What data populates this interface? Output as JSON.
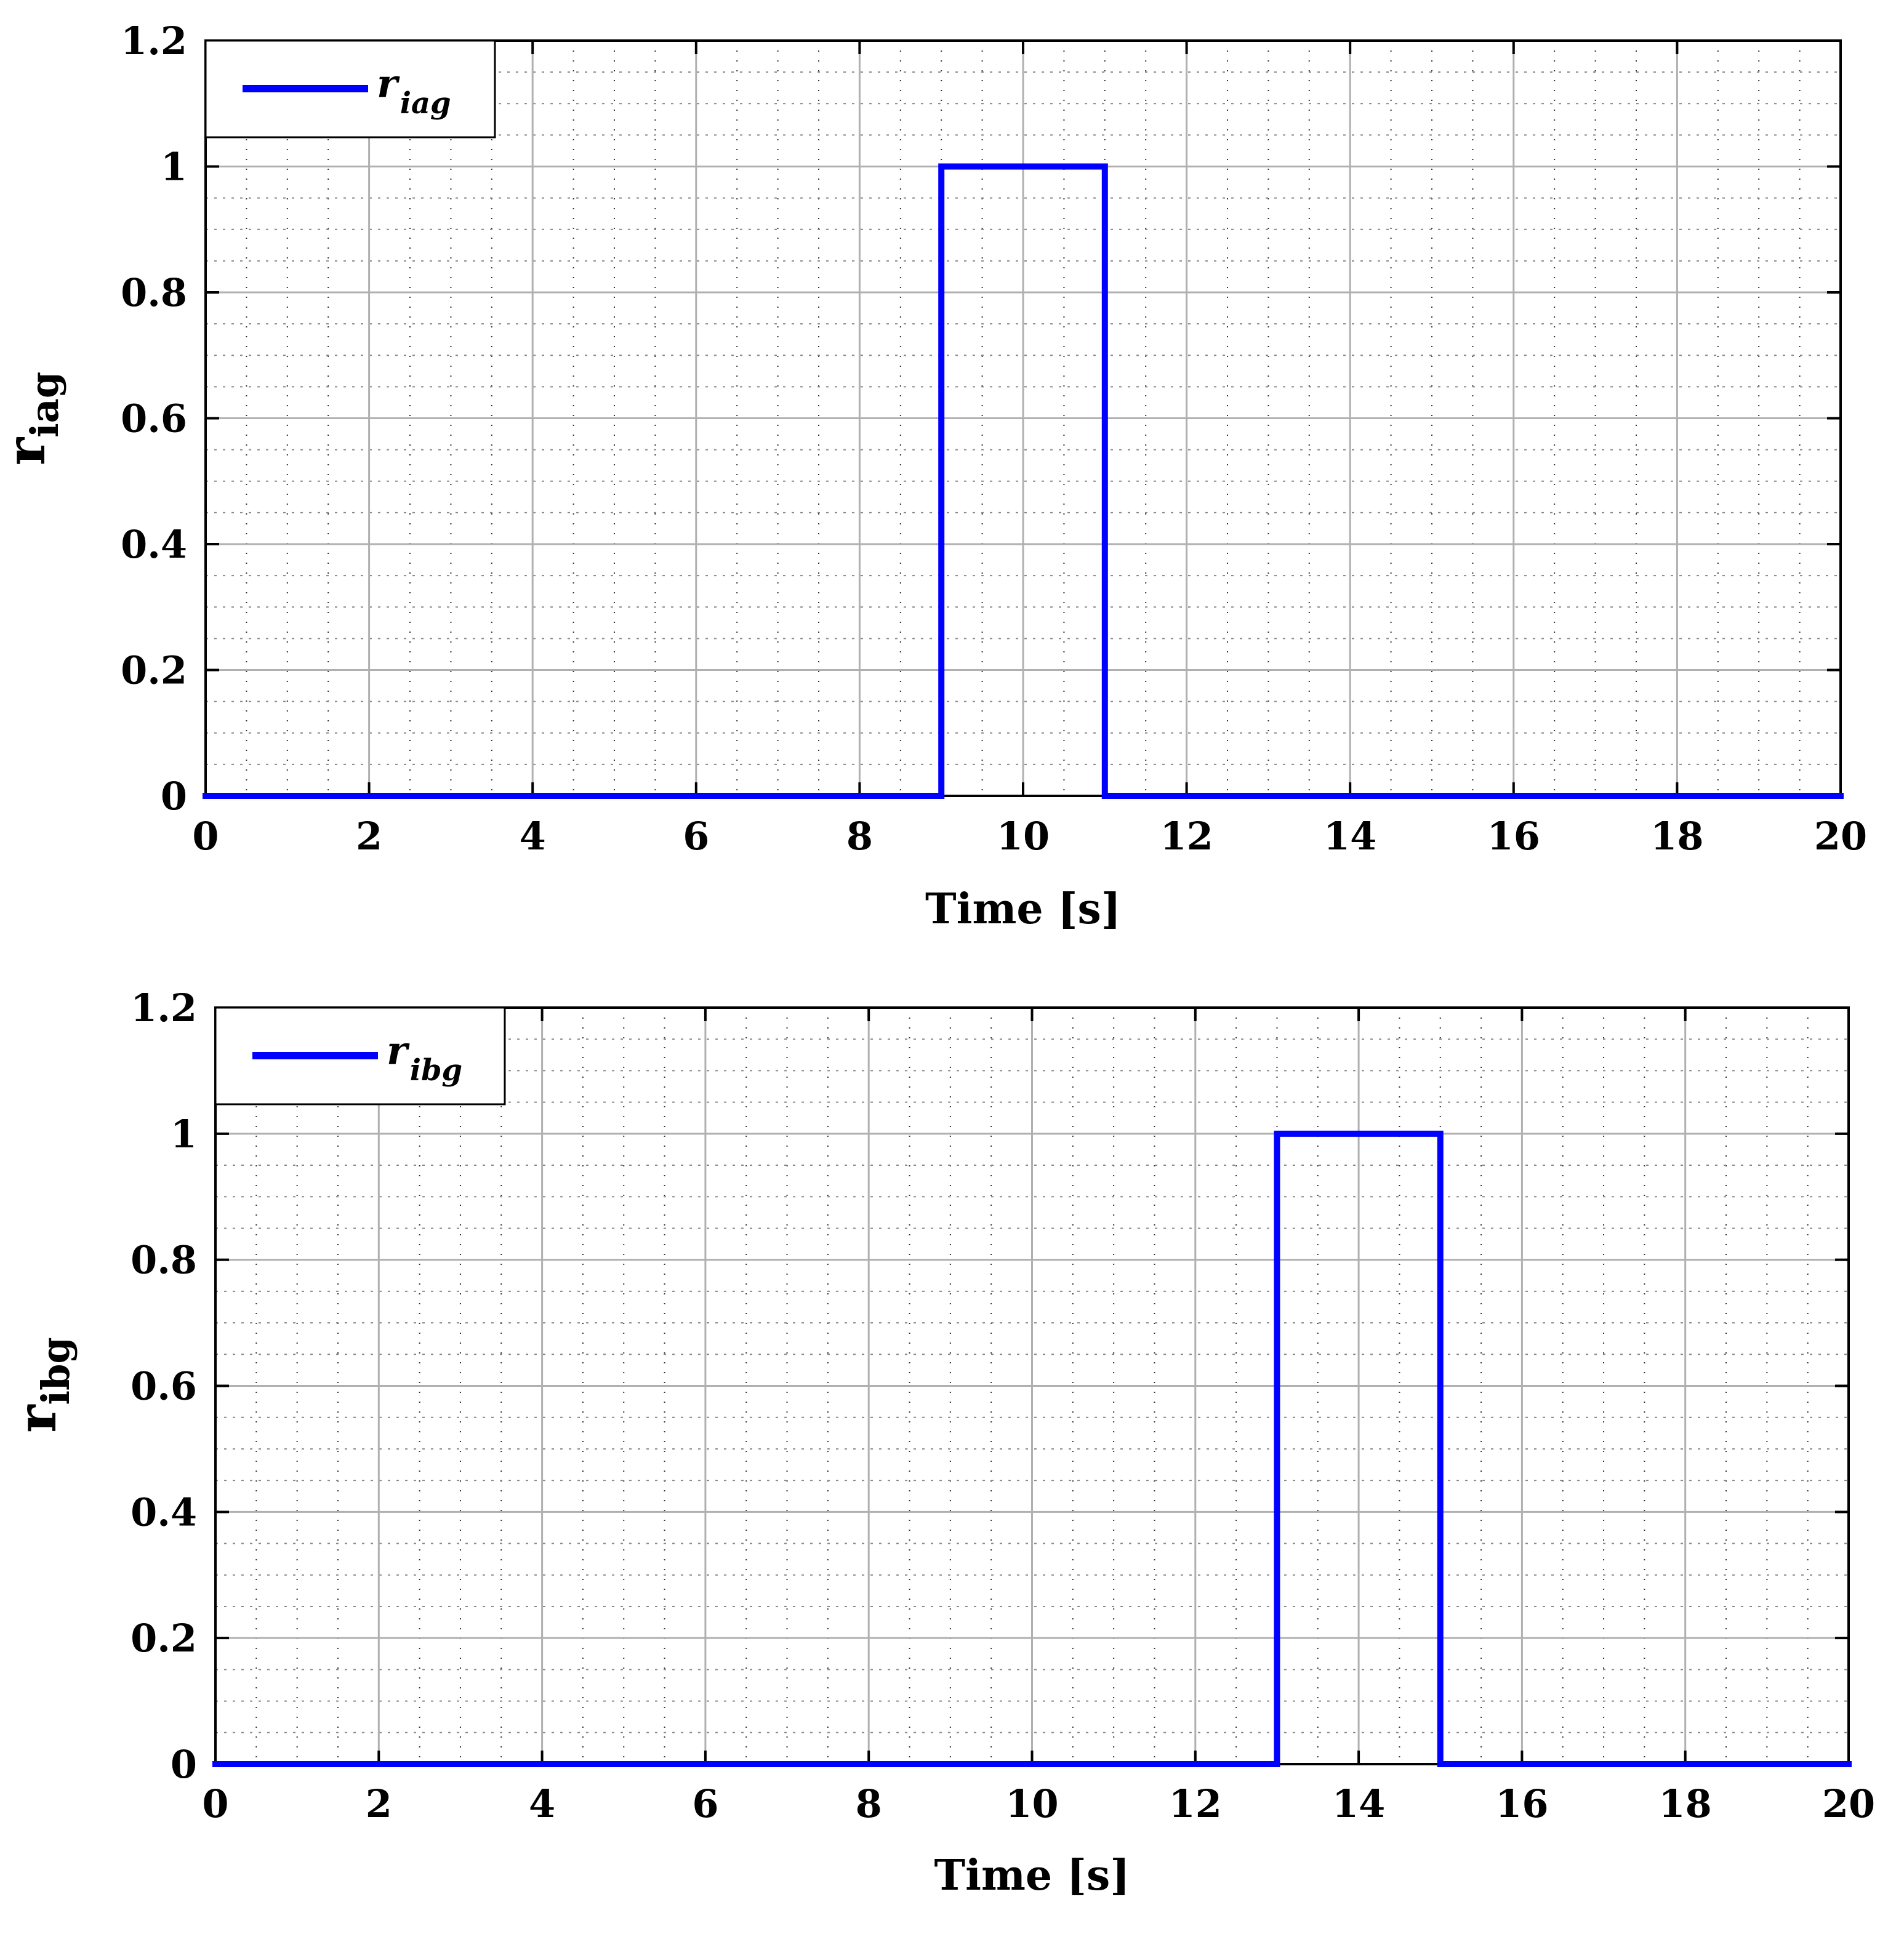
{
  "chart_data": [
    {
      "type": "line",
      "x_label": "Time [s]",
      "y_label": {
        "base": "r",
        "sub": "iag"
      },
      "legend": {
        "base": "r",
        "sub": "iag",
        "position": "top-left"
      },
      "xlim": [
        0,
        20
      ],
      "ylim": [
        0,
        1.2
      ],
      "x_ticks": [
        "0",
        "2",
        "4",
        "6",
        "8",
        "10",
        "12",
        "14",
        "16",
        "18",
        "20"
      ],
      "y_ticks": [
        "0",
        "0.2",
        "0.4",
        "0.6",
        "0.8",
        "1",
        "1.2"
      ],
      "grid": true,
      "minor_grid": true,
      "series": [
        {
          "name": "r_iag",
          "color": "#0000ff",
          "x": [
            0,
            9,
            9,
            11,
            11,
            20
          ],
          "y": [
            0,
            0,
            1,
            1,
            0,
            0
          ]
        }
      ]
    },
    {
      "type": "line",
      "x_label": "Time [s]",
      "y_label": {
        "base": "r",
        "sub": "ibg"
      },
      "legend": {
        "base": "r",
        "sub": "ibg",
        "position": "top-left"
      },
      "xlim": [
        0,
        20
      ],
      "ylim": [
        0,
        1.2
      ],
      "x_ticks": [
        "0",
        "2",
        "4",
        "6",
        "8",
        "10",
        "12",
        "14",
        "16",
        "18",
        "20"
      ],
      "y_ticks": [
        "0",
        "0.2",
        "0.4",
        "0.6",
        "0.8",
        "1",
        "1.2"
      ],
      "grid": true,
      "minor_grid": true,
      "series": [
        {
          "name": "r_ibg",
          "color": "#0000ff",
          "x": [
            0,
            13,
            13,
            15,
            15,
            20
          ],
          "y": [
            0,
            0,
            1,
            1,
            0,
            0
          ]
        }
      ]
    }
  ]
}
